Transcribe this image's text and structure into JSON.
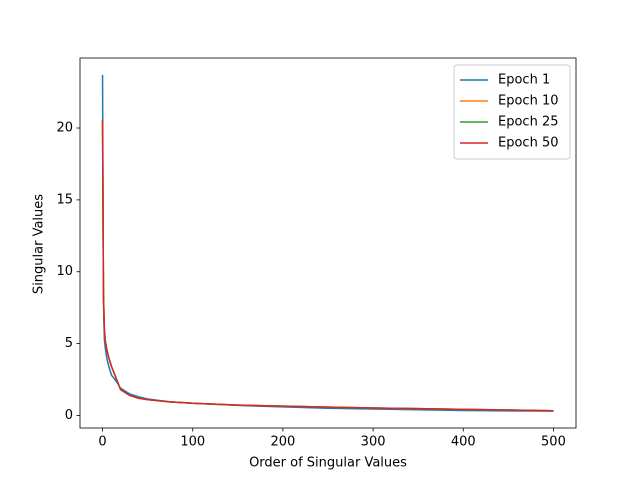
{
  "chart_data": {
    "type": "line",
    "x_label": "Order of Singular Values",
    "y_label": "Singular Values",
    "x": [
      0,
      1,
      2,
      3,
      5,
      7,
      10,
      15,
      20,
      30,
      40,
      50,
      75,
      100,
      150,
      200,
      250,
      300,
      350,
      400,
      450,
      500
    ],
    "series": [
      {
        "name": "Epoch 1",
        "color": "#1f77b4",
        "values": [
          23.7,
          8.0,
          5.3,
          4.7,
          3.9,
          3.4,
          2.8,
          2.4,
          1.9,
          1.5,
          1.3,
          1.15,
          0.95,
          0.85,
          0.7,
          0.6,
          0.5,
          0.45,
          0.4,
          0.35,
          0.32,
          0.3
        ]
      },
      {
        "name": "Epoch 10",
        "color": "#ff7f0e",
        "values": [
          20.5,
          8.5,
          6.0,
          5.2,
          4.5,
          4.0,
          3.4,
          2.6,
          1.8,
          1.4,
          1.2,
          1.1,
          0.95,
          0.85,
          0.72,
          0.65,
          0.58,
          0.52,
          0.48,
          0.43,
          0.38,
          0.33
        ]
      },
      {
        "name": "Epoch 25",
        "color": "#2ca02c",
        "values": [
          20.5,
          8.4,
          6.0,
          5.2,
          4.5,
          4.0,
          3.4,
          2.6,
          1.8,
          1.4,
          1.2,
          1.1,
          0.95,
          0.85,
          0.72,
          0.65,
          0.58,
          0.52,
          0.48,
          0.43,
          0.38,
          0.33
        ]
      },
      {
        "name": "Epoch 50",
        "color": "#d62728",
        "values": [
          20.6,
          8.5,
          6.0,
          5.2,
          4.5,
          4.0,
          3.4,
          2.6,
          1.8,
          1.4,
          1.2,
          1.1,
          0.95,
          0.85,
          0.72,
          0.65,
          0.58,
          0.52,
          0.48,
          0.43,
          0.38,
          0.33
        ]
      }
    ],
    "xlim": [
      -25,
      525
    ],
    "xticks": [
      0,
      100,
      200,
      300,
      400,
      500
    ],
    "ylim": [
      -0.87,
      24.87
    ],
    "yticks": [
      0,
      5,
      10,
      15,
      20
    ],
    "legend": "upper-right",
    "grid": false
  }
}
